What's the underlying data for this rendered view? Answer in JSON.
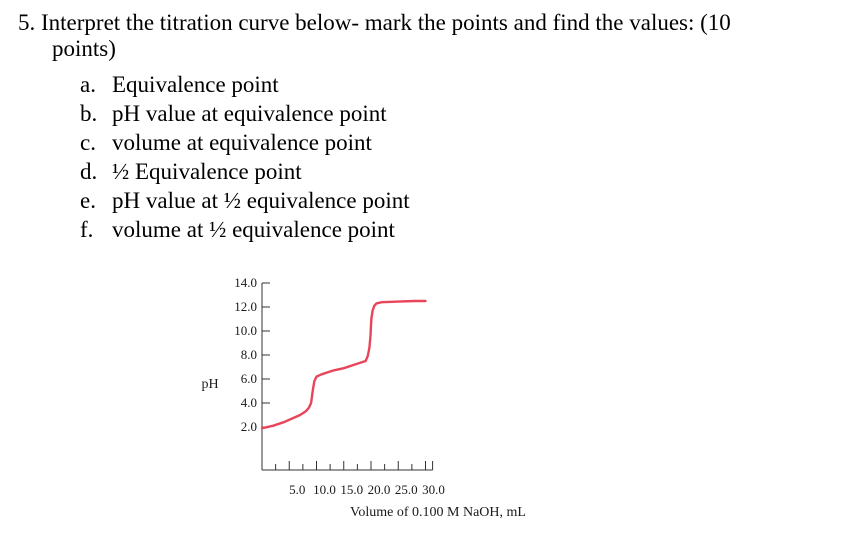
{
  "question": {
    "number": "5.",
    "text_line1": "Interpret the titration curve below- mark the points and find the values: (10",
    "text_line2": "points)"
  },
  "items": [
    {
      "letter": "a.",
      "text": "Equivalence point"
    },
    {
      "letter": "b.",
      "text": "pH value at equivalence point"
    },
    {
      "letter": "c.",
      "text": "volume at equivalence point"
    },
    {
      "letter": "d.",
      "text": "½ Equivalence point"
    },
    {
      "letter": "e.",
      "text": "pH value at ½ equivalence point"
    },
    {
      "letter": "f.",
      "text": "volume at ½ equivalence point"
    }
  ],
  "chart_data": {
    "type": "line",
    "title": "",
    "xlabel": "Volume of 0.100 M NaOH, mL",
    "ylabel": "pH",
    "xlim": [
      0,
      30
    ],
    "ylim": [
      0,
      14
    ],
    "x_ticks": [
      5,
      10,
      15,
      20,
      25,
      30
    ],
    "x_tick_labels": [
      "5.0",
      "10.0",
      "15.0",
      "20.0",
      "25.0",
      "30.0"
    ],
    "y_ticks": [
      2,
      4,
      6,
      8,
      10,
      12,
      14
    ],
    "y_tick_labels": [
      "2.0",
      "4.0",
      "6.0",
      "8.0",
      "10.0",
      "12.0",
      "14.0"
    ],
    "grid": false,
    "line_color": "#e8455a",
    "series": [
      {
        "x": [
          0,
          2,
          4,
          6,
          7,
          8,
          8.6,
          9,
          9.3,
          9.6,
          10,
          11,
          13,
          15,
          17,
          19,
          19.4,
          19.7,
          19.9,
          20,
          20.1,
          20.3,
          20.6,
          21,
          22,
          25,
          28,
          30
        ],
        "y": [
          1.9,
          2.1,
          2.4,
          2.8,
          3.0,
          3.3,
          3.6,
          4.0,
          5.0,
          5.8,
          6.2,
          6.4,
          6.7,
          6.9,
          7.2,
          7.5,
          7.9,
          8.6,
          9.6,
          10.5,
          11.1,
          11.7,
          12.1,
          12.3,
          12.4,
          12.45,
          12.5,
          12.5
        ]
      }
    ]
  }
}
